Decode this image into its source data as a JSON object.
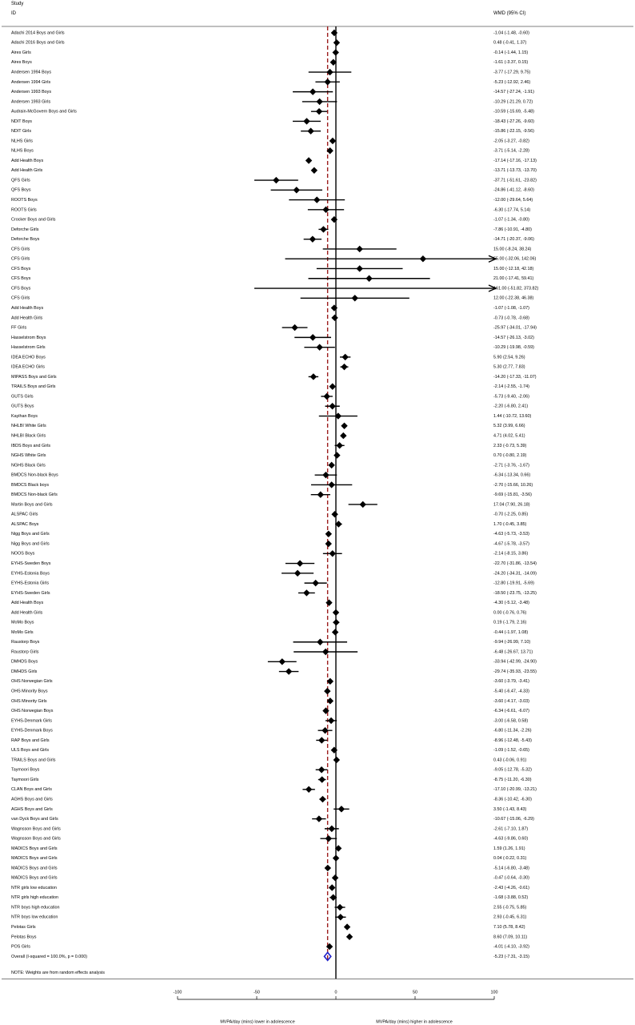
{
  "header": {
    "study_label": "Study",
    "id_label": "ID",
    "effect_label": "WMD (95% CI)"
  },
  "chart_data": {
    "type": "forest",
    "xlim": [
      -100,
      100
    ],
    "x_ticks": [
      -100,
      -50,
      0,
      50,
      100
    ],
    "x_ticks_text": [
      "-100",
      "-50",
      "0",
      "50",
      "100"
    ],
    "xlabel_left": "MVPA/day (mins) lower in adolescence",
    "xlabel_right": "MVPA/day (mins) higher in adolescence",
    "null_line": 0,
    "overall_line": -5.23,
    "studies": [
      {
        "id": "Adachi 2014 Boys and Girls",
        "wmd": -1.04,
        "lo": -1.48,
        "hi": -0.6,
        "ci": "-1.04 (-1.48, -0.60)"
      },
      {
        "id": "Adachi 2016 Boys and Girls",
        "wmd": 0.48,
        "lo": -0.41,
        "hi": 1.37,
        "ci": "0.48 (-0.41, 1.37)"
      },
      {
        "id": "Aires Girls",
        "wmd": -0.14,
        "lo": -1.44,
        "hi": 1.15,
        "ci": "-0.14 (-1.44, 1.15)"
      },
      {
        "id": "Aires Boys",
        "wmd": -1.61,
        "lo": -3.37,
        "hi": 0.15,
        "ci": "-1.61 (-3.37, 0.15)"
      },
      {
        "id": "Andersen 1994 Boys",
        "wmd": -3.77,
        "lo": -17.29,
        "hi": 9.75,
        "ci": "-3.77 (-17.29, 9.75)"
      },
      {
        "id": "Andersen 1994 Girls",
        "wmd": -5.23,
        "lo": -12.92,
        "hi": 2.46,
        "ci": "-5.23 (-12.92, 2.46)"
      },
      {
        "id": "Andersen 1993 Boys",
        "wmd": -14.57,
        "lo": -27.24,
        "hi": -1.91,
        "ci": "-14.57 (-27.24, -1.91)"
      },
      {
        "id": "Andersen 1993 Girls",
        "wmd": -10.29,
        "lo": -21.29,
        "hi": 0.72,
        "ci": "-10.29 (-21.29, 0.72)"
      },
      {
        "id": "Audrain-McGovern Boys and Girls",
        "wmd": -10.59,
        "lo": -15.69,
        "hi": -5.48,
        "ci": "-10.59 (-15.69, -5.48)"
      },
      {
        "id": "NDIT Boys",
        "wmd": -18.43,
        "lo": -27.26,
        "hi": -9.6,
        "ci": "-18.43 (-27.26, -9.60)"
      },
      {
        "id": "NDIT Girls",
        "wmd": -15.86,
        "lo": -22.15,
        "hi": -9.56,
        "ci": "-15.86 (-22.15, -9.56)"
      },
      {
        "id": "NLHS Girls",
        "wmd": -2.05,
        "lo": -3.27,
        "hi": -0.82,
        "ci": "-2.05 (-3.27, -0.82)"
      },
      {
        "id": "NLHS Boys",
        "wmd": -3.71,
        "lo": -5.14,
        "hi": -2.28,
        "ci": "-3.71 (-5.14, -2.28)"
      },
      {
        "id": "Add Health Boys",
        "wmd": -17.14,
        "lo": -17.16,
        "hi": -17.13,
        "ci": "-17.14 (-17.16, -17.13)"
      },
      {
        "id": "Add Health Girls",
        "wmd": -13.71,
        "lo": -13.73,
        "hi": -13.7,
        "ci": "-13.71 (-13.73, -13.70)"
      },
      {
        "id": "QFS Girls",
        "wmd": -37.71,
        "lo": -51.61,
        "hi": -23.82,
        "ci": "-37.71 (-51.61, -23.82)"
      },
      {
        "id": "QFS Boys",
        "wmd": -24.86,
        "lo": -41.12,
        "hi": -8.6,
        "ci": "-24.86 (-41.12, -8.60)"
      },
      {
        "id": "ROOTS Boys",
        "wmd": -12.0,
        "lo": -29.64,
        "hi": 5.64,
        "ci": "-12.00 (-29.64, 5.64)"
      },
      {
        "id": "ROOTS Girls",
        "wmd": -6.3,
        "lo": -17.74,
        "hi": 5.14,
        "ci": "-6.30 (-17.74, 5.14)"
      },
      {
        "id": "Crocker Boys and Girls",
        "wmd": -1.07,
        "lo": -1.34,
        "hi": -0.8,
        "ci": "-1.07 (-1.34, -0.80)"
      },
      {
        "id": "Deforche Girls",
        "wmd": -7.86,
        "lo": -10.91,
        "hi": -4.8,
        "ci": "-7.86 (-10.91, -4.80)"
      },
      {
        "id": "Deforche Boys",
        "wmd": -14.71,
        "lo": -20.37,
        "hi": -9.06,
        "ci": "-14.71 (-20.37, -9.06)"
      },
      {
        "id": "CFS Girls",
        "wmd": 15.0,
        "lo": -8.24,
        "hi": 38.24,
        "ci": "15.00 (-8.24, 38.24)"
      },
      {
        "id": "CFS Girls",
        "wmd": 55.0,
        "lo": -32.06,
        "hi": 142.06,
        "ci": "55.00 (-32.06, 142.06)"
      },
      {
        "id": "CFS Boys",
        "wmd": 15.0,
        "lo": -12.18,
        "hi": 42.18,
        "ci": "15.00 (-12.18, 42.18)"
      },
      {
        "id": "CFS Boys",
        "wmd": 21.0,
        "lo": -17.41,
        "hi": 59.41,
        "ci": "21.00 (-17.41, 59.41)"
      },
      {
        "id": "CFS Boys",
        "wmd": 161.0,
        "lo": -51.82,
        "hi": 373.82,
        "ci": "161.00 (-51.82, 373.82)"
      },
      {
        "id": "CFS Girls",
        "wmd": 12.0,
        "lo": -22.38,
        "hi": 46.38,
        "ci": "12.00 (-22.38, 46.38)"
      },
      {
        "id": "Add Health Boys",
        "wmd": -1.07,
        "lo": -1.08,
        "hi": -1.07,
        "ci": "-1.07 (-1.08, -1.07)"
      },
      {
        "id": "Add Health Girls",
        "wmd": -0.73,
        "lo": -0.78,
        "hi": -0.68,
        "ci": "-0.73 (-0.78, -0.68)"
      },
      {
        "id": "FF Girls",
        "wmd": -25.97,
        "lo": -34.01,
        "hi": -17.94,
        "ci": "-25.97 (-34.01, -17.94)"
      },
      {
        "id": "Hasselstrom Boys",
        "wmd": -14.57,
        "lo": -26.13,
        "hi": -3.02,
        "ci": "-14.57 (-26.13, -3.02)"
      },
      {
        "id": "Hasselstrom Girls",
        "wmd": -10.29,
        "lo": -19.98,
        "hi": -0.59,
        "ci": "-10.29 (-19.98, -0.59)"
      },
      {
        "id": "IDEA ECHO Boys",
        "wmd": 5.9,
        "lo": 2.54,
        "hi": 9.26,
        "ci": "5.90 (2.54, 9.26)"
      },
      {
        "id": "IDEA ECHO Girls",
        "wmd": 5.3,
        "lo": 2.77,
        "hi": 7.83,
        "ci": "5.30 (2.77, 7.83)"
      },
      {
        "id": "MIPASS Boys and Girls",
        "wmd": -14.2,
        "lo": -17.33,
        "hi": -11.07,
        "ci": "-14.20 (-17.33, -11.07)"
      },
      {
        "id": "TRAILS Boys and Girls",
        "wmd": -2.14,
        "lo": -2.55,
        "hi": -1.74,
        "ci": "-2.14 (-2.55, -1.74)"
      },
      {
        "id": "GUTS Girls",
        "wmd": -5.73,
        "lo": -9.4,
        "hi": -2.06,
        "ci": "-5.73 (-9.40, -2.06)"
      },
      {
        "id": "GUTS Boys",
        "wmd": -2.2,
        "lo": -6.8,
        "hi": 2.41,
        "ci": "-2.20 (-6.80, 2.41)"
      },
      {
        "id": "Kayihan Boys",
        "wmd": 1.44,
        "lo": -10.72,
        "hi": 13.6,
        "ci": "1.44 (-10.72, 13.60)"
      },
      {
        "id": "NHLBI White Girls",
        "wmd": 5.32,
        "lo": 3.99,
        "hi": 6.66,
        "ci": "5.32 (3.99, 6.66)"
      },
      {
        "id": "NHLBI Black Girls",
        "wmd": 4.71,
        "lo": 4.02,
        "hi": 5.41,
        "ci": "4.71 (4.02, 5.41)"
      },
      {
        "id": "IBDS Boys and Girls",
        "wmd": 2.33,
        "lo": -0.73,
        "hi": 5.39,
        "ci": "2.33 (-0.73, 5.39)"
      },
      {
        "id": "NGHS White Girls",
        "wmd": 0.7,
        "lo": -0.8,
        "hi": 2.19,
        "ci": "0.70 (-0.80, 2.19)"
      },
      {
        "id": "NGHS Black Girls",
        "wmd": -2.71,
        "lo": -3.76,
        "hi": -1.67,
        "ci": "-2.71 (-3.76, -1.67)"
      },
      {
        "id": "BMDCS Non-black Boys",
        "wmd": -6.34,
        "lo": -13.34,
        "hi": 0.66,
        "ci": "-6.34 (-13.34, 0.66)"
      },
      {
        "id": "BMDCS Black boys",
        "wmd": -2.7,
        "lo": -15.66,
        "hi": 10.26,
        "ci": "-2.70 (-15.66, 10.26)"
      },
      {
        "id": "BMDCS Non-black Girls",
        "wmd": -9.69,
        "lo": -15.81,
        "hi": -3.56,
        "ci": "-9.69 (-15.81, -3.56)"
      },
      {
        "id": "Martin Boys and Girls",
        "wmd": 17.04,
        "lo": 7.9,
        "hi": 26.18,
        "ci": "17.04 (7.90, 26.18)"
      },
      {
        "id": "ALSPAC Girls",
        "wmd": -0.7,
        "lo": -2.25,
        "hi": 0.85,
        "ci": "-0.70 (-2.25, 0.85)"
      },
      {
        "id": "ALSPAC Boys",
        "wmd": 1.7,
        "lo": -0.45,
        "hi": 3.85,
        "ci": "1.70 (-0.45, 3.85)"
      },
      {
        "id": "Nigg Boys and Girls",
        "wmd": -4.63,
        "lo": -5.73,
        "hi": -3.53,
        "ci": "-4.63 (-5.73, -3.53)"
      },
      {
        "id": "Nigg Boys and Girls",
        "wmd": -4.67,
        "lo": -5.78,
        "hi": -3.57,
        "ci": "-4.67 (-5.78, -3.57)"
      },
      {
        "id": "NOOS Boys",
        "wmd": -2.14,
        "lo": -8.15,
        "hi": 3.86,
        "ci": "-2.14 (-8.15, 3.86)"
      },
      {
        "id": "EYHS-Sweden Boys",
        "wmd": -22.7,
        "lo": -31.86,
        "hi": -13.54,
        "ci": "-22.70 (-31.86, -13.54)"
      },
      {
        "id": "EYHS-Estonia Boys",
        "wmd": -24.2,
        "lo": -34.31,
        "hi": -14.09,
        "ci": "-24.20 (-34.31, -14.09)"
      },
      {
        "id": "EYHS-Estonia Girls",
        "wmd": -12.8,
        "lo": -19.91,
        "hi": -5.69,
        "ci": "-12.80 (-19.91, -5.69)"
      },
      {
        "id": "EYHS-Sweden Girls",
        "wmd": -18.5,
        "lo": -23.75,
        "hi": -13.25,
        "ci": "-18.50 (-23.75, -13.25)"
      },
      {
        "id": "Add Health Boys",
        "wmd": -4.3,
        "lo": -5.12,
        "hi": -3.48,
        "ci": "-4.30 (-5.12, -3.48)"
      },
      {
        "id": "Add Health Girls",
        "wmd": 0.0,
        "lo": -0.76,
        "hi": 0.76,
        "ci": "0.00 (-0.76, 0.76)"
      },
      {
        "id": "MoMo Boys",
        "wmd": 0.19,
        "lo": -1.79,
        "hi": 2.16,
        "ci": "0.19 (-1.79, 2.16)"
      },
      {
        "id": "MoMo Girls",
        "wmd": -0.44,
        "lo": -1.97,
        "hi": 1.08,
        "ci": "-0.44 (-1.97, 1.08)"
      },
      {
        "id": "Raustorp Boys",
        "wmd": -9.94,
        "lo": -26.99,
        "hi": 7.1,
        "ci": "-9.94 (-26.99, 7.10)"
      },
      {
        "id": "Raustorp Girls",
        "wmd": -6.48,
        "lo": -26.67,
        "hi": 13.71,
        "ci": "-6.48 (-26.67, 13.71)"
      },
      {
        "id": "DMHDS Boys",
        "wmd": -33.94,
        "lo": -42.99,
        "hi": -24.9,
        "ci": "-33.94 (-42.99, -24.90)"
      },
      {
        "id": "DMHDS Girls",
        "wmd": -29.74,
        "lo": -35.93,
        "hi": -23.55,
        "ci": "-29.74 (-35.93, -23.55)"
      },
      {
        "id": "OHS Norwegian Girls",
        "wmd": -3.6,
        "lo": -3.79,
        "hi": -3.41,
        "ci": "-3.60 (-3.79, -3.41)"
      },
      {
        "id": "OHS Minority Boys",
        "wmd": -5.4,
        "lo": -6.47,
        "hi": -4.33,
        "ci": "-5.40 (-6.47, -4.33)"
      },
      {
        "id": "OHS Minority Girls",
        "wmd": -3.6,
        "lo": -4.17,
        "hi": -3.03,
        "ci": "-3.60 (-4.17, -3.03)"
      },
      {
        "id": "OHS Norwegian Boys",
        "wmd": -6.34,
        "lo": -6.61,
        "hi": -6.07,
        "ci": "-6.34 (-6.61, -6.07)"
      },
      {
        "id": "EYHS-Denmark Girls",
        "wmd": -3.0,
        "lo": -6.58,
        "hi": 0.58,
        "ci": "-3.00 (-6.58, 0.58)"
      },
      {
        "id": "EYHS-Denmark Boys",
        "wmd": -6.8,
        "lo": -11.34,
        "hi": -2.26,
        "ci": "-6.80 (-11.34, -2.26)"
      },
      {
        "id": "RAP Boys and Girls",
        "wmd": -8.96,
        "lo": -12.48,
        "hi": -5.43,
        "ci": "-8.96 (-12.48, -5.43)"
      },
      {
        "id": "ULS Boys and Girls",
        "wmd": -1.09,
        "lo": -1.52,
        "hi": -0.65,
        "ci": "-1.09 (-1.52, -0.65)"
      },
      {
        "id": "TRAILS Boys and Girls",
        "wmd": 0.43,
        "lo": -0.06,
        "hi": 0.91,
        "ci": "0.43 (-0.06, 0.91)"
      },
      {
        "id": "Taymoori Boys",
        "wmd": -9.05,
        "lo": -12.78,
        "hi": -5.32,
        "ci": "-9.05 (-12.78, -5.32)"
      },
      {
        "id": "Taymoori Girls",
        "wmd": -8.75,
        "lo": -11.2,
        "hi": -6.3,
        "ci": "-8.75 (-11.20, -6.30)"
      },
      {
        "id": "CLAN Boys and Girls",
        "wmd": -17.1,
        "lo": -20.99,
        "hi": -13.21,
        "ci": "-17.10 (-20.99, -13.21)"
      },
      {
        "id": "AGHS Boys and Girls",
        "wmd": -8.36,
        "lo": -10.42,
        "hi": -6.3,
        "ci": "-8.36 (-10.42, -6.30)"
      },
      {
        "id": "AGHS Boys and Girls",
        "wmd": 3.5,
        "lo": -1.43,
        "hi": 8.43,
        "ci": "3.50 (-1.43, 8.43)"
      },
      {
        "id": "van Dyck Boys and Girls",
        "wmd": -10.67,
        "lo": -15.06,
        "hi": -6.29,
        "ci": "-10.67 (-15.06, -6.29)"
      },
      {
        "id": "Wagnsson Boys and Girls",
        "wmd": -2.61,
        "lo": -7.1,
        "hi": 1.87,
        "ci": "-2.61 (-7.10, 1.87)"
      },
      {
        "id": "Wagnsson Boys and Girls",
        "wmd": -4.63,
        "lo": -9.86,
        "hi": 0.6,
        "ci": "-4.63 (-9.86, 0.60)"
      },
      {
        "id": "MADICS Boys and Girls",
        "wmd": 1.59,
        "lo": 1.26,
        "hi": 1.91,
        "ci": "1.59 (1.26, 1.91)"
      },
      {
        "id": "MADICS Boys and Girls",
        "wmd": 0.04,
        "lo": -0.22,
        "hi": 0.31,
        "ci": "0.04 (-0.22, 0.31)"
      },
      {
        "id": "MADICS Boys and Girls",
        "wmd": -5.14,
        "lo": -6.8,
        "hi": -3.48,
        "ci": "-5.14 (-6.80, -3.48)"
      },
      {
        "id": "MADICS Boys and Girls",
        "wmd": -0.47,
        "lo": -0.64,
        "hi": -0.3,
        "ci": "-0.47 (-0.64, -0.30)"
      },
      {
        "id": "NTR girls low education",
        "wmd": -2.43,
        "lo": -4.26,
        "hi": -0.61,
        "ci": "-2.43 (-4.26, -0.61)"
      },
      {
        "id": "NTR girls high education",
        "wmd": -1.68,
        "lo": -3.88,
        "hi": 0.52,
        "ci": "-1.68 (-3.88, 0.52)"
      },
      {
        "id": "NTR boys high education",
        "wmd": 2.55,
        "lo": -0.75,
        "hi": 5.85,
        "ci": "2.55 (-0.75, 5.85)"
      },
      {
        "id": "NTR boys low education",
        "wmd": 2.93,
        "lo": -0.45,
        "hi": 6.31,
        "ci": "2.93 (-0.45, 6.31)"
      },
      {
        "id": "Pelotas Girls",
        "wmd": 7.1,
        "lo": 5.78,
        "hi": 8.42,
        "ci": "7.10 (5.78, 8.42)"
      },
      {
        "id": "Pelotas Boys",
        "wmd": 8.6,
        "lo": 7.09,
        "hi": 10.11,
        "ci": "8.60 (7.09, 10.11)"
      },
      {
        "id": "POS Girls",
        "wmd": -4.01,
        "lo": -4.1,
        "hi": -3.92,
        "ci": "-4.01 (-4.10, -3.92)"
      }
    ],
    "overall": {
      "id": "Overall  (I-squared = 100.0%, p = 0.000)",
      "wmd": -5.23,
      "lo": -7.31,
      "hi": -3.15,
      "ci": "-5.23 (-7.31, -3.15)",
      "color": "#1f1fc8"
    },
    "note": "NOTE: Weights are from random effects analysis",
    "colors": {
      "overall_line": "#9b1c1c",
      "null_line": "#000000",
      "marker": "#000000"
    }
  }
}
